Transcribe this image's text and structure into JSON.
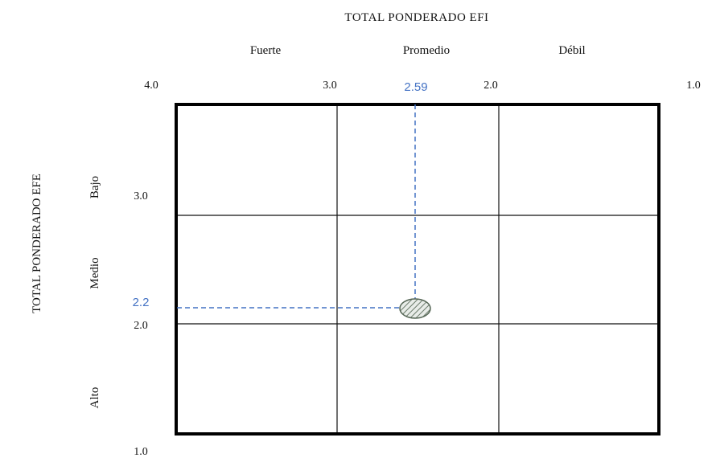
{
  "top_axis": {
    "title": "TOTAL PONDERADO EFI",
    "categories": [
      "Fuerte",
      "Promedio",
      "Débil"
    ],
    "ticks": [
      "4.0",
      "3.0",
      "2.0",
      "1.0"
    ]
  },
  "left_axis": {
    "title": "TOTAL PONDERADO EFE",
    "categories": [
      "Bajo",
      "Medio",
      "Alto"
    ],
    "ticks": [
      "3.0",
      "2.0",
      "1.0"
    ]
  },
  "marker": {
    "x_label": "2.59",
    "y_label": "2.2",
    "x_value": 2.59,
    "y_value": 2.2,
    "guide_color": "#4472c4"
  }
}
